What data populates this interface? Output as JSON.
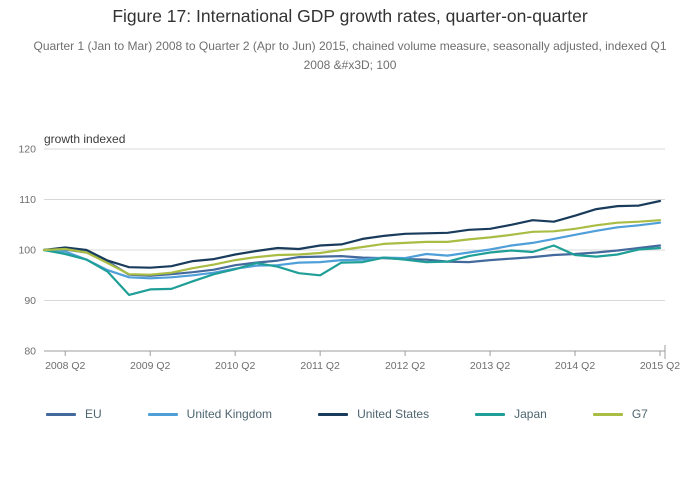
{
  "chart": {
    "title": "Figure 17: International GDP growth rates, quarter-on-quarter",
    "subtitle": "Quarter 1 (Jan to Mar) 2008 to Quarter 2 (Apr to Jun) 2015, chained volume measure, seasonally adjusted, indexed Q1 2008 &#x3D; 100"
  },
  "chart_data": {
    "type": "line",
    "title": "Figure 17: International GDP growth rates, quarter-on-quarter",
    "ylabel": "growth indexed",
    "ylim": [
      80,
      120
    ],
    "yticks": [
      80,
      90,
      100,
      110,
      120
    ],
    "grid": "horizontal",
    "legend_position": "bottom",
    "x_quarters": [
      "2008 Q1",
      "2008 Q2",
      "2008 Q3",
      "2008 Q4",
      "2009 Q1",
      "2009 Q2",
      "2009 Q3",
      "2009 Q4",
      "2010 Q1",
      "2010 Q2",
      "2010 Q3",
      "2010 Q4",
      "2011 Q1",
      "2011 Q2",
      "2011 Q3",
      "2011 Q4",
      "2012 Q1",
      "2012 Q2",
      "2012 Q3",
      "2012 Q4",
      "2013 Q1",
      "2013 Q2",
      "2013 Q3",
      "2013 Q4",
      "2014 Q1",
      "2014 Q2",
      "2014 Q3",
      "2014 Q4",
      "2015 Q1",
      "2015 Q2"
    ],
    "x_tick_labels": [
      "2008 Q2",
      "2009 Q2",
      "2010 Q2",
      "2011 Q2",
      "2012 Q2",
      "2013 Q2",
      "2014 Q2",
      "2015 Q2"
    ],
    "x_tick_indices": [
      1,
      5,
      9,
      13,
      17,
      21,
      25,
      29
    ],
    "series": [
      {
        "name": "EU",
        "color": "#44699d",
        "values": [
          100,
          100.1,
          99.5,
          97.7,
          95.1,
          94.9,
          95.2,
          95.6,
          96.1,
          97.0,
          97.5,
          97.9,
          98.6,
          98.7,
          98.8,
          98.5,
          98.4,
          98.2,
          98.1,
          97.7,
          97.6,
          98.0,
          98.3,
          98.6,
          99.0,
          99.2,
          99.5,
          99.9,
          100.4,
          100.9
        ]
      },
      {
        "name": "United Kingdom",
        "color": "#4f9fd9",
        "values": [
          100,
          99.7,
          98.1,
          96.0,
          94.6,
          94.4,
          94.6,
          95.0,
          95.5,
          96.3,
          96.9,
          97.0,
          97.5,
          97.6,
          98.0,
          98.1,
          98.5,
          98.4,
          99.2,
          98.9,
          99.5,
          100.1,
          100.9,
          101.4,
          102.2,
          103.0,
          103.8,
          104.5,
          104.9,
          105.4
        ]
      },
      {
        "name": "United States",
        "color": "#1a3c5c",
        "values": [
          100,
          100.5,
          100.0,
          97.9,
          96.6,
          96.5,
          96.8,
          97.8,
          98.2,
          99.1,
          99.8,
          100.4,
          100.2,
          100.9,
          101.1,
          102.2,
          102.8,
          103.2,
          103.3,
          103.4,
          104.0,
          104.2,
          105.0,
          105.9,
          105.6,
          106.8,
          108.1,
          108.7,
          108.8,
          109.7
        ]
      },
      {
        "name": "Japan",
        "color": "#1f9f97",
        "values": [
          100,
          99.2,
          98.1,
          95.7,
          91.1,
          92.2,
          92.3,
          93.8,
          95.2,
          96.2,
          97.4,
          96.7,
          95.4,
          95.0,
          97.5,
          97.6,
          98.5,
          98.1,
          97.6,
          97.7,
          98.8,
          99.5,
          99.9,
          99.6,
          100.9,
          99.0,
          98.7,
          99.1,
          100.1,
          100.4
        ]
      },
      {
        "name": "G7",
        "color": "#a9bd45",
        "values": [
          100,
          100.2,
          99.5,
          97.4,
          95.2,
          95.1,
          95.5,
          96.4,
          97.1,
          98.0,
          98.6,
          99.0,
          99.1,
          99.4,
          100.0,
          100.6,
          101.2,
          101.4,
          101.6,
          101.6,
          102.1,
          102.5,
          103.0,
          103.6,
          103.7,
          104.2,
          104.9,
          105.4,
          105.6,
          105.9
        ]
      }
    ]
  },
  "colors": {
    "grid": "#d8d8d8",
    "axis": "#9c9c9c",
    "tick_text": "#6e6e6e",
    "axis_label_text": "#3c3c3c",
    "title_text": "#333333",
    "subtitle_text": "#6f6f6f",
    "legend_text": "#4d6570"
  }
}
